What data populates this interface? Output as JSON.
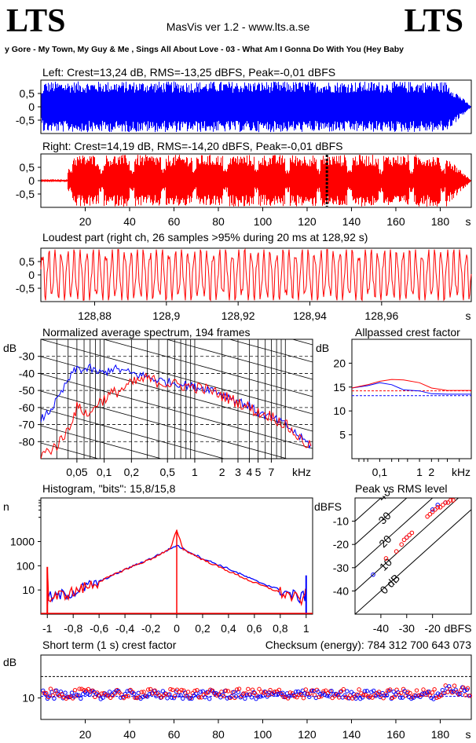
{
  "header": {
    "logo_left": "LTS",
    "logo_right": "LTS",
    "app_title": "MasVis ver 1.2 - www.lts.a.se",
    "track": "y Gore - My Town, My Guy & Me , Sings All About Love - 03 - What Am I Gonna Do With You (Hey Baby"
  },
  "colors": {
    "left": "#0000ff",
    "right": "#ff0000",
    "grid": "#000000",
    "background": "#ffffff"
  },
  "chart_data": [
    {
      "type": "area",
      "id": "left",
      "title": "Left: Crest=13,24 dB, RMS=-13,25 dBFS, Peak=-0,01 dBFS",
      "y_ticks": [
        0.5,
        0,
        -0.5
      ],
      "y_tick_labels": [
        "0,5",
        "0",
        "-0,5"
      ],
      "ylim": [
        -1,
        1
      ],
      "xlim": [
        0,
        194
      ]
    },
    {
      "type": "area",
      "id": "right",
      "title": "Right: Crest=14,19 dB, RMS=-14,20 dBFS, Peak=-0,01 dBFS",
      "y_ticks": [
        0.5,
        0,
        -0.5
      ],
      "y_tick_labels": [
        "0,5",
        "0",
        "-0,5"
      ],
      "x_ticks": [
        20,
        40,
        60,
        80,
        100,
        120,
        140,
        160,
        180
      ],
      "x_tick_labels": [
        "20",
        "40",
        "60",
        "80",
        "100",
        "120",
        "140",
        "160",
        "180"
      ],
      "x_unit": "s",
      "ylim": [
        -1,
        1
      ],
      "xlim": [
        0,
        194
      ],
      "marker_s": 128.92
    },
    {
      "type": "line",
      "id": "loudest",
      "title": "Loudest part (right ch, 26 samples >95% during 20 ms at 128,92 s)",
      "y_ticks": [
        0.5,
        0,
        -0.5
      ],
      "y_tick_labels": [
        "0,5",
        "0",
        "-0,5"
      ],
      "x_ticks": [
        128.88,
        128.9,
        128.92,
        128.94,
        128.96
      ],
      "x_tick_labels": [
        "128,88",
        "128,9",
        "128,92",
        "128,94",
        "128,96"
      ],
      "x_unit": "s",
      "xlim": [
        128.865,
        128.985
      ],
      "ylim": [
        -1,
        1
      ]
    },
    {
      "type": "line",
      "id": "spectrum",
      "title": "Normalized average spectrum, 194 frames",
      "y_unit": "dB",
      "y_ticks": [
        -30,
        -40,
        -50,
        -60,
        -70,
        -80
      ],
      "x_tick_labels": [
        "0,05",
        "0,1",
        "0,2",
        "0,5",
        "1",
        "2",
        "3",
        "4",
        "5",
        "7"
      ],
      "x_ticks": [
        0.05,
        0.1,
        0.2,
        0.5,
        1,
        2,
        3,
        4,
        5,
        7
      ],
      "x_unit": "kHz",
      "xlim_khz": [
        0.02,
        20
      ],
      "ylim": [
        -90,
        -20
      ],
      "series": [
        {
          "color": "#0000ff",
          "x": [
            0.02,
            0.025,
            0.03,
            0.035,
            0.04,
            0.045,
            0.05,
            0.06,
            0.07,
            0.08,
            0.1,
            0.12,
            0.15,
            0.2,
            0.25,
            0.3,
            0.4,
            0.5,
            0.7,
            1,
            1.5,
            2,
            3,
            4,
            5,
            7,
            10,
            15,
            20
          ],
          "y": [
            -67,
            -62,
            -56,
            -50,
            -44,
            -40,
            -37,
            -38,
            -37,
            -39,
            -40,
            -37,
            -38,
            -40,
            -41,
            -42,
            -44,
            -45,
            -46,
            -48,
            -49,
            -52,
            -56,
            -59,
            -63,
            -66,
            -70,
            -78,
            -83
          ]
        },
        {
          "color": "#ff0000",
          "x": [
            0.02,
            0.025,
            0.03,
            0.035,
            0.04,
            0.045,
            0.05,
            0.06,
            0.07,
            0.08,
            0.1,
            0.12,
            0.15,
            0.2,
            0.25,
            0.3,
            0.4,
            0.5,
            0.7,
            1,
            1.5,
            2,
            3,
            4,
            5,
            7,
            10,
            15,
            20
          ],
          "y": [
            -88,
            -85,
            -82,
            -78,
            -72,
            -66,
            -60,
            -62,
            -65,
            -58,
            -55,
            -52,
            -50,
            -46,
            -44,
            -43,
            -45,
            -46,
            -47,
            -48,
            -50,
            -53,
            -57,
            -60,
            -63,
            -65,
            -70,
            -79,
            -84
          ]
        }
      ]
    },
    {
      "type": "line",
      "id": "allpass",
      "title": "Allpassed crest factor",
      "y_unit": "dB",
      "y_ticks": [
        20,
        15,
        10,
        5
      ],
      "x_ticks": [
        0.1,
        1,
        2
      ],
      "x_tick_labels": [
        "0,1",
        "1",
        "2"
      ],
      "x_unit": "kHz",
      "ylim": [
        0,
        25
      ],
      "series": [
        {
          "color": "#0000ff",
          "x": [
            0.02,
            0.05,
            0.1,
            0.2,
            0.4,
            1,
            2,
            5,
            20
          ],
          "y": [
            14.8,
            15.3,
            15.9,
            15.5,
            14.4,
            14.2,
            13.6,
            13.5,
            13.5
          ]
        },
        {
          "color": "#ff0000",
          "x": [
            0.02,
            0.05,
            0.1,
            0.2,
            0.4,
            1,
            2,
            5,
            20
          ],
          "y": [
            14.8,
            15.5,
            16.2,
            16.6,
            16.5,
            15.9,
            14.8,
            14.3,
            14.3
          ]
        }
      ],
      "reference": [
        {
          "color": "#0000ff",
          "y": 13.2
        },
        {
          "color": "#ff0000",
          "y": 14.2
        }
      ]
    },
    {
      "type": "line",
      "id": "histogram",
      "title": "Histogram, \"bits\": 15,8/15,8",
      "y_unit": "n",
      "y_scale": "log",
      "y_ticks": [
        1000,
        100,
        10
      ],
      "x_ticks": [
        -1,
        -0.8,
        -0.6,
        -0.4,
        -0.2,
        0,
        0.2,
        0.4,
        0.6,
        0.8,
        1
      ],
      "x_tick_labels": [
        "-1",
        "-0,8",
        "-0,6",
        "-0,4",
        "-0,2",
        "0",
        "0,2",
        "0,4",
        "0,6",
        "0,8",
        "1"
      ],
      "xlim": [
        -1.05,
        1.05
      ],
      "series": [
        {
          "color": "#0000ff",
          "x": [
            -1,
            -0.99,
            -0.95,
            -0.9,
            -0.8,
            -0.6,
            -0.4,
            -0.2,
            -0.05,
            0,
            0.05,
            0.2,
            0.4,
            0.6,
            0.8,
            0.9,
            0.95,
            0.99,
            1
          ],
          "y": [
            3,
            5,
            5,
            6,
            8,
            22,
            70,
            200,
            500,
            700,
            500,
            200,
            75,
            25,
            10,
            6,
            5,
            5,
            40
          ]
        },
        {
          "color": "#ff0000",
          "x": [
            -1,
            -0.99,
            -0.95,
            -0.9,
            -0.8,
            -0.6,
            -0.4,
            -0.2,
            -0.05,
            0,
            0.05,
            0.2,
            0.4,
            0.6,
            0.8,
            0.9,
            0.95,
            0.99,
            1
          ],
          "y": [
            90,
            4,
            5,
            6,
            8,
            22,
            70,
            190,
            480,
            3000,
            480,
            180,
            60,
            20,
            8,
            5,
            4,
            4,
            80
          ]
        }
      ]
    },
    {
      "type": "scatter",
      "id": "peakrms",
      "title": "Peak vs RMS level",
      "y_unit": "dBFS",
      "x_unit": "dBFS",
      "y_ticks": [
        -10,
        -20,
        -30,
        -40
      ],
      "x_ticks": [
        -40,
        -30,
        -20
      ],
      "xlim": [
        -50,
        -5
      ],
      "ylim": [
        -50,
        0
      ],
      "diagonal_labels": [
        "40",
        "30",
        "20",
        "10",
        "0 dB"
      ],
      "series": [
        {
          "color": "#0000ff",
          "points": [
            [
              -43,
              -33
            ],
            [
              -30,
              -17
            ],
            [
              -20,
              -5
            ],
            [
              -18,
              -3
            ],
            [
              -15,
              -2
            ]
          ]
        },
        {
          "color": "#ff0000",
          "points": [
            [
              -38,
              -26
            ],
            [
              -34,
              -23
            ],
            [
              -32,
              -20
            ],
            [
              -31,
              -18
            ],
            [
              -30,
              -17
            ],
            [
              -29,
              -16
            ],
            [
              -28,
              -15
            ],
            [
              -22,
              -8
            ],
            [
              -21,
              -7
            ],
            [
              -20,
              -6
            ],
            [
              -19,
              -5
            ],
            [
              -18,
              -4
            ],
            [
              -17,
              -4
            ],
            [
              -16,
              -3
            ],
            [
              -15,
              -2
            ],
            [
              -14,
              -2
            ],
            [
              -13,
              -1
            ],
            [
              -12,
              -1
            ]
          ]
        }
      ]
    },
    {
      "type": "scatter",
      "id": "crest",
      "title": "Short term (1 s) crest factor",
      "checksum": "Checksum (energy):   784 312 700 643 073",
      "y_unit": "dB",
      "y_ticks": [
        10
      ],
      "x_ticks": [
        20,
        40,
        60,
        80,
        100,
        120,
        140,
        160,
        180
      ],
      "x_tick_labels": [
        "20",
        "40",
        "60",
        "80",
        "100",
        "120",
        "140",
        "160",
        "180"
      ],
      "x_unit": "s",
      "xlim": [
        0,
        194
      ],
      "ylim": [
        0,
        30
      ],
      "reference_dotted": [
        20,
        10
      ]
    }
  ]
}
